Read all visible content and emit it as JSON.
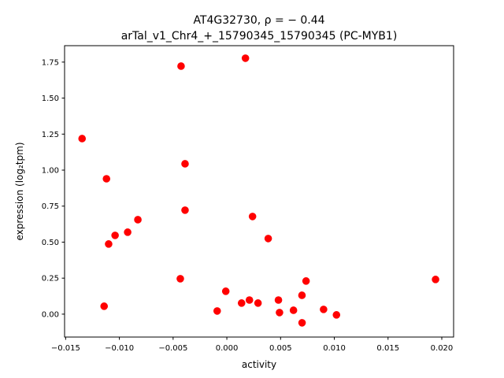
{
  "chart_data": {
    "type": "scatter",
    "title_line1": "AT4G32730, ρ = − 0.44",
    "title_line2": "arTal_v1_Chr4_+_15790345_15790345 (PC-MYB1)",
    "xlabel": "activity",
    "ylabel": "expression (log₂tpm)",
    "xlim": [
      -0.0151,
      0.0211
    ],
    "ylim": [
      -0.159,
      1.864
    ],
    "xticks": [
      -0.015,
      -0.01,
      -0.005,
      0.0,
      0.005,
      0.01,
      0.015,
      0.02
    ],
    "xtick_labels": [
      "−0.015",
      "−0.010",
      "−0.005",
      "0.000",
      "0.005",
      "0.010",
      "0.015",
      "0.020"
    ],
    "yticks": [
      0.0,
      0.25,
      0.5,
      0.75,
      1.0,
      1.25,
      1.5,
      1.75
    ],
    "ytick_labels": [
      "0.00",
      "0.25",
      "0.50",
      "0.75",
      "1.00",
      "1.25",
      "1.50",
      "1.75"
    ],
    "grid": false,
    "color": "#ff0000",
    "points": [
      [
        -0.01347,
        1.219
      ],
      [
        -0.00426,
        1.722
      ],
      [
        0.00173,
        1.777
      ],
      [
        -0.0112,
        0.94
      ],
      [
        -0.00389,
        1.044
      ],
      [
        -0.00389,
        0.722
      ],
      [
        0.00239,
        0.678
      ],
      [
        -0.00828,
        0.656
      ],
      [
        -0.00923,
        0.569
      ],
      [
        -0.0104,
        0.547
      ],
      [
        -0.011,
        0.487
      ],
      [
        0.00385,
        0.525
      ],
      [
        -0.00433,
        0.246
      ],
      [
        0.01942,
        0.241
      ],
      [
        0.00737,
        0.23
      ],
      [
        -0.0001,
        0.159
      ],
      [
        0.00699,
        0.131
      ],
      [
        -0.01142,
        0.055
      ],
      [
        0.00137,
        0.077
      ],
      [
        0.0021,
        0.098
      ],
      [
        0.0029,
        0.077
      ],
      [
        0.0048,
        0.098
      ],
      [
        -0.0009,
        0.022
      ],
      [
        0.0049,
        0.011
      ],
      [
        0.0062,
        0.027
      ],
      [
        0.009,
        0.033
      ],
      [
        0.0102,
        -0.005
      ],
      [
        0.007,
        -0.06
      ]
    ]
  }
}
